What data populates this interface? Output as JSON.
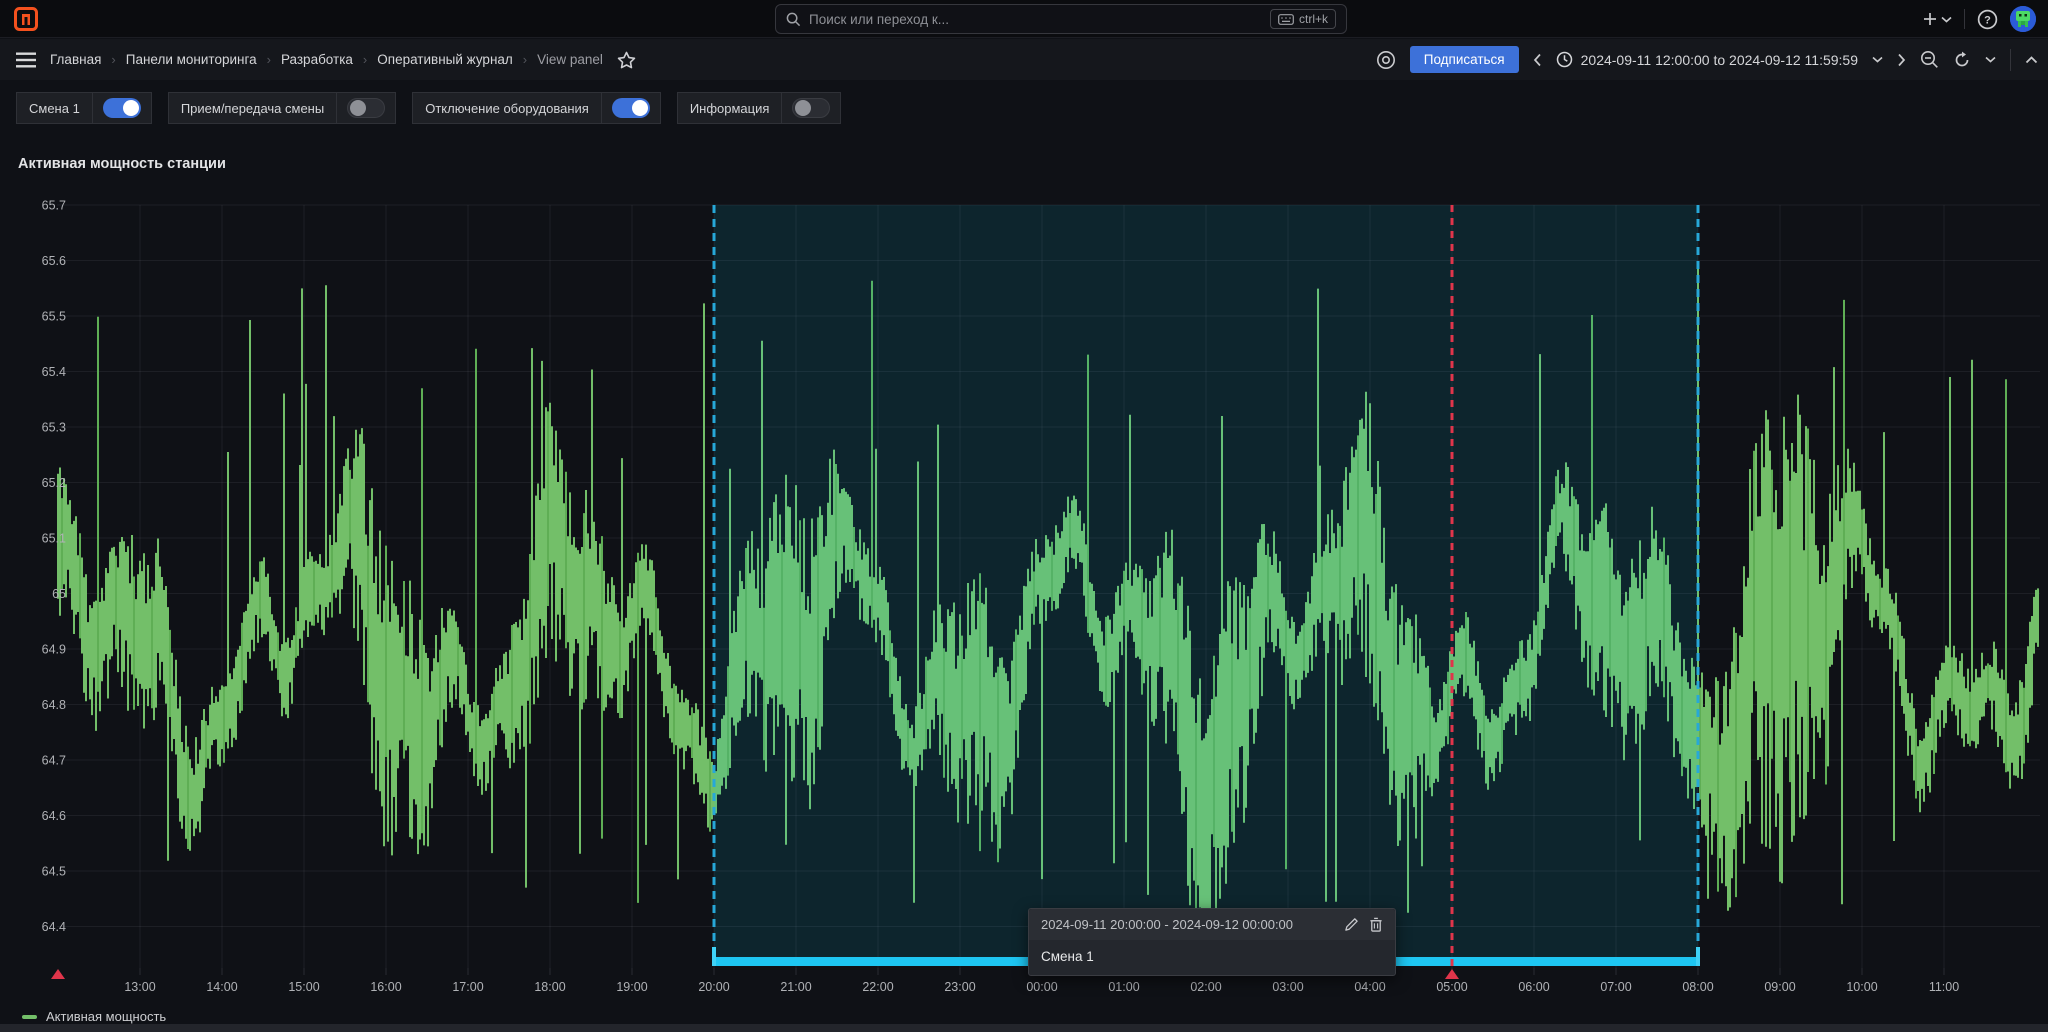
{
  "topbar": {
    "search_placeholder": "Поиск или переход к...",
    "shortcut": "ctrl+k",
    "new_label": "+",
    "icons": [
      "plus-icon",
      "caret-down-icon",
      "help-icon",
      "user-avatar"
    ]
  },
  "navbar": {
    "breadcrumbs": [
      "Главная",
      "Панели мониторинга",
      "Разработка",
      "Оперативный журнал"
    ],
    "current_page": "View panel",
    "subscribe_label": "Подписаться",
    "time_range": "2024-09-11 12:00:00 to 2024-09-12 11:59:59"
  },
  "filters": [
    {
      "label": "Смена 1",
      "on": true
    },
    {
      "label": "Прием/передача смены",
      "on": false
    },
    {
      "label": "Отключение оборудования",
      "on": true
    },
    {
      "label": "Информация",
      "on": false
    }
  ],
  "panel": {
    "title": "Активная мощность станции"
  },
  "tooltip": {
    "range": "2024-09-11 20:00:00 - 2024-09-12 00:00:00",
    "label": "Смена 1"
  },
  "chart_data": {
    "type": "line",
    "title": "Активная мощность станции",
    "series": [
      {
        "name": "Активная мощность",
        "color": "#73BF69"
      }
    ],
    "ylabel": "",
    "xlabel": "",
    "ylim": [
      64.35,
      65.72
    ],
    "y_ticks": [
      "65.7",
      "65.6",
      "65.5",
      "65.4",
      "65.3",
      "65.2",
      "65.1",
      "65",
      "64.9",
      "64.8",
      "64.7",
      "64.6",
      "64.5",
      "64.4"
    ],
    "x_ticks": [
      "13:00",
      "14:00",
      "15:00",
      "16:00",
      "17:00",
      "18:00",
      "19:00",
      "20:00",
      "21:00",
      "22:00",
      "23:00",
      "00:00",
      "01:00",
      "02:00",
      "03:00",
      "04:00",
      "05:00",
      "06:00",
      "07:00",
      "08:00",
      "09:00",
      "10:00",
      "11:00"
    ],
    "x_start": "12:00",
    "grid": true,
    "legend_position": "bottom-left",
    "waveform": {
      "seed": 11,
      "base": 64.9,
      "typical_range": [
        64.55,
        65.25
      ],
      "spike_max": 65.62,
      "dip_min": 64.42,
      "columns": 990
    },
    "annotations": [
      {
        "type": "region",
        "label": "Смена 1",
        "from": "20:00",
        "to": "08:00",
        "fill": "rgba(0,211,255,0.10)",
        "border_color": "#27A8D8",
        "bar_color": "#1EC6F2"
      },
      {
        "type": "vline",
        "time": "05:00",
        "color": "#E0354B",
        "style": "dashed"
      },
      {
        "type": "marker",
        "time": "12:00",
        "color": "#E0354B"
      }
    ],
    "colors": {
      "grid": "rgba(204,204,220,0.08)",
      "axis_text": "#B0B2B6",
      "series_green": "#73BF69",
      "series_green_dark": "#5FAE55"
    }
  }
}
